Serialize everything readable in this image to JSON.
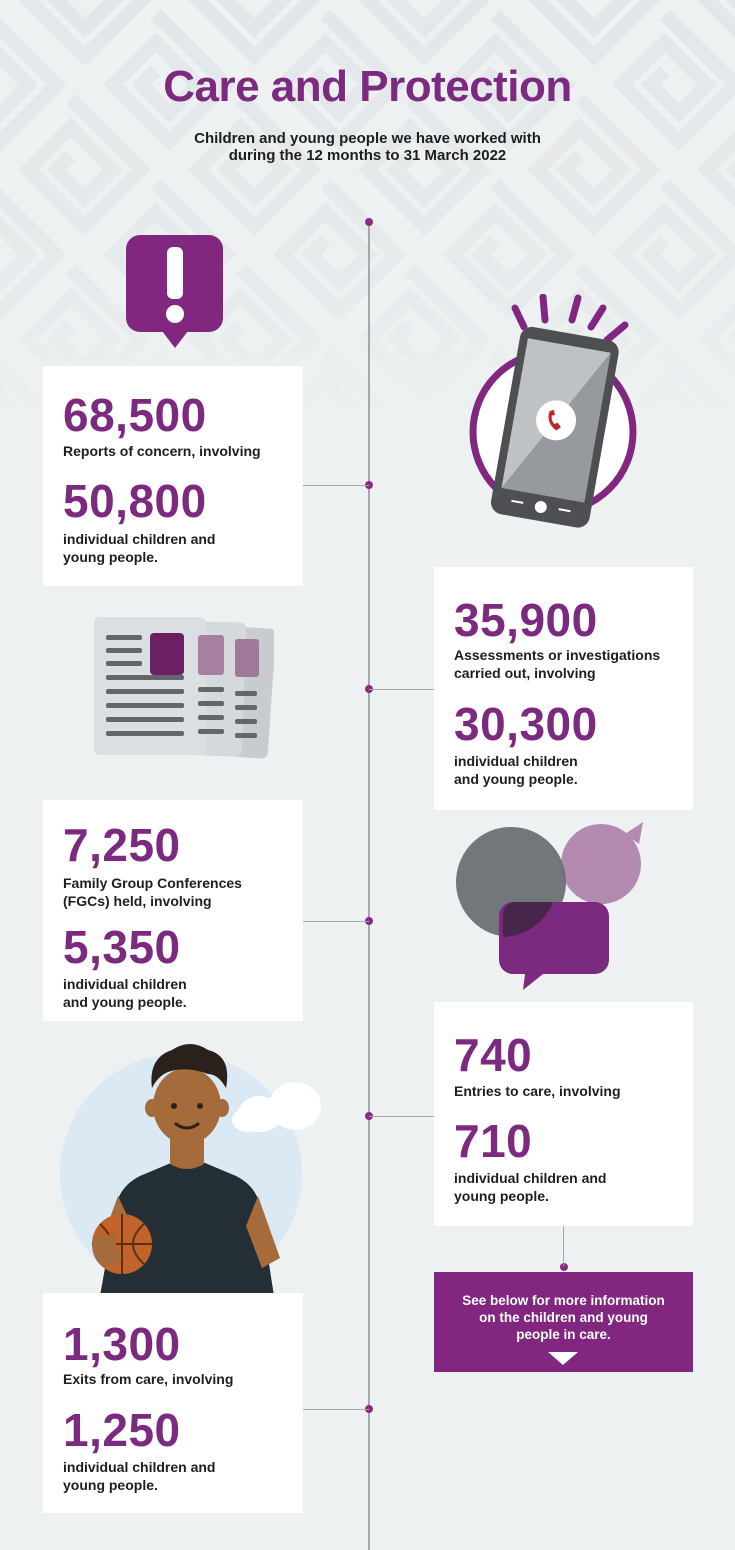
{
  "header": {
    "title": "Care and Protection",
    "subtitle_line1": "Children and young people we have worked with",
    "subtitle_line2": "during the 12 months to 31 March 2022"
  },
  "stats": [
    {
      "number": "68,500",
      "label": [
        "Reports of concern, involving"
      ],
      "number2": "50,800",
      "label2": [
        "individual children and",
        "young people."
      ]
    },
    {
      "number": "35,900",
      "label": [
        "Assessments or investigations",
        "carried out, involving"
      ],
      "number2": "30,300",
      "label2": [
        "individual children",
        "and young people."
      ]
    },
    {
      "number": "7,250",
      "label": [
        "Family Group Conferences",
        "(FGCs) held, involving"
      ],
      "number2": "5,350",
      "label2": [
        "individual children",
        "and young people."
      ]
    },
    {
      "number": "740",
      "label": [
        "Entries to care, involving"
      ],
      "number2": "710",
      "label2": [
        "individual children and",
        "young people."
      ]
    },
    {
      "number": "1,300",
      "label": [
        "Exits from care, involving"
      ],
      "number2": "1,250",
      "label2": [
        "individual children and",
        "young people."
      ]
    }
  ],
  "cta": {
    "line1": "See below for more information",
    "line2": "on the children and young",
    "line3": "people in care."
  },
  "colors": {
    "accent": "#7b2a7f",
    "background": "#eef1f2",
    "timeline": "#a7a7ab"
  },
  "icons": [
    "alert-icon",
    "phone-icon",
    "documents-icon",
    "speech-bubbles-icon",
    "person-basketball-icon",
    "arrow-down-icon"
  ]
}
